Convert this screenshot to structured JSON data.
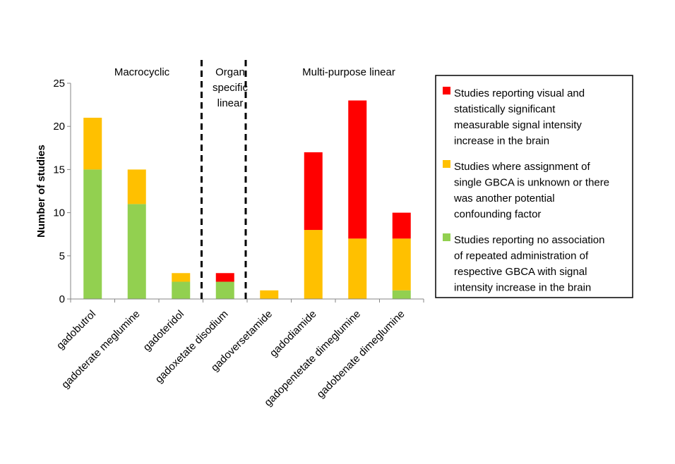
{
  "chart_data": {
    "type": "bar",
    "stacked": true,
    "categories": [
      "gadobutrol",
      "gadoterate meglumine",
      "gadoteridol",
      "gadoxetate disodium",
      "gadoversetamide",
      "gadodiamide",
      "gadopentetate dimeglumine",
      "gadobenate dimeglumine"
    ],
    "series": [
      {
        "key": "no_association",
        "color": "#92d050",
        "legend_lines": [
          "Studies reporting no association",
          "of repeated administration of",
          "respective GBCA with signal",
          "intensity increase in the brain"
        ],
        "values": [
          15,
          11,
          2,
          2,
          0,
          0,
          0,
          1
        ]
      },
      {
        "key": "unknown_or_confounding",
        "color": "#ffc000",
        "legend_lines": [
          "Studies where assignment of",
          "single GBCA is unknown or there",
          "was another potential",
          "confounding factor"
        ],
        "values": [
          6,
          4,
          1,
          0,
          1,
          8,
          7,
          6
        ]
      },
      {
        "key": "signal_increase",
        "color": "#ff0000",
        "legend_lines": [
          "Studies reporting visual and",
          "statistically significant",
          "measurable signal intensity",
          "increase in the brain"
        ],
        "values": [
          0,
          0,
          0,
          1,
          0,
          9,
          16,
          3
        ]
      }
    ],
    "legend_order": [
      "signal_increase",
      "unknown_or_confounding",
      "no_association"
    ],
    "legend_position": "right",
    "ylabel": "Number of studies",
    "xlabel": "",
    "ylim": [
      0,
      25
    ],
    "yticks": [
      "0",
      "5",
      "10",
      "15",
      "20",
      "25"
    ],
    "grid": false,
    "groups": [
      {
        "label_lines": [
          "Macrocyclic"
        ],
        "start": 0,
        "end": 2
      },
      {
        "label_lines": [
          "Organ",
          "specific",
          "linear"
        ],
        "start": 3,
        "end": 3
      },
      {
        "label_lines": [
          "Multi-purpose linear"
        ],
        "start": 4,
        "end": 7
      }
    ]
  }
}
